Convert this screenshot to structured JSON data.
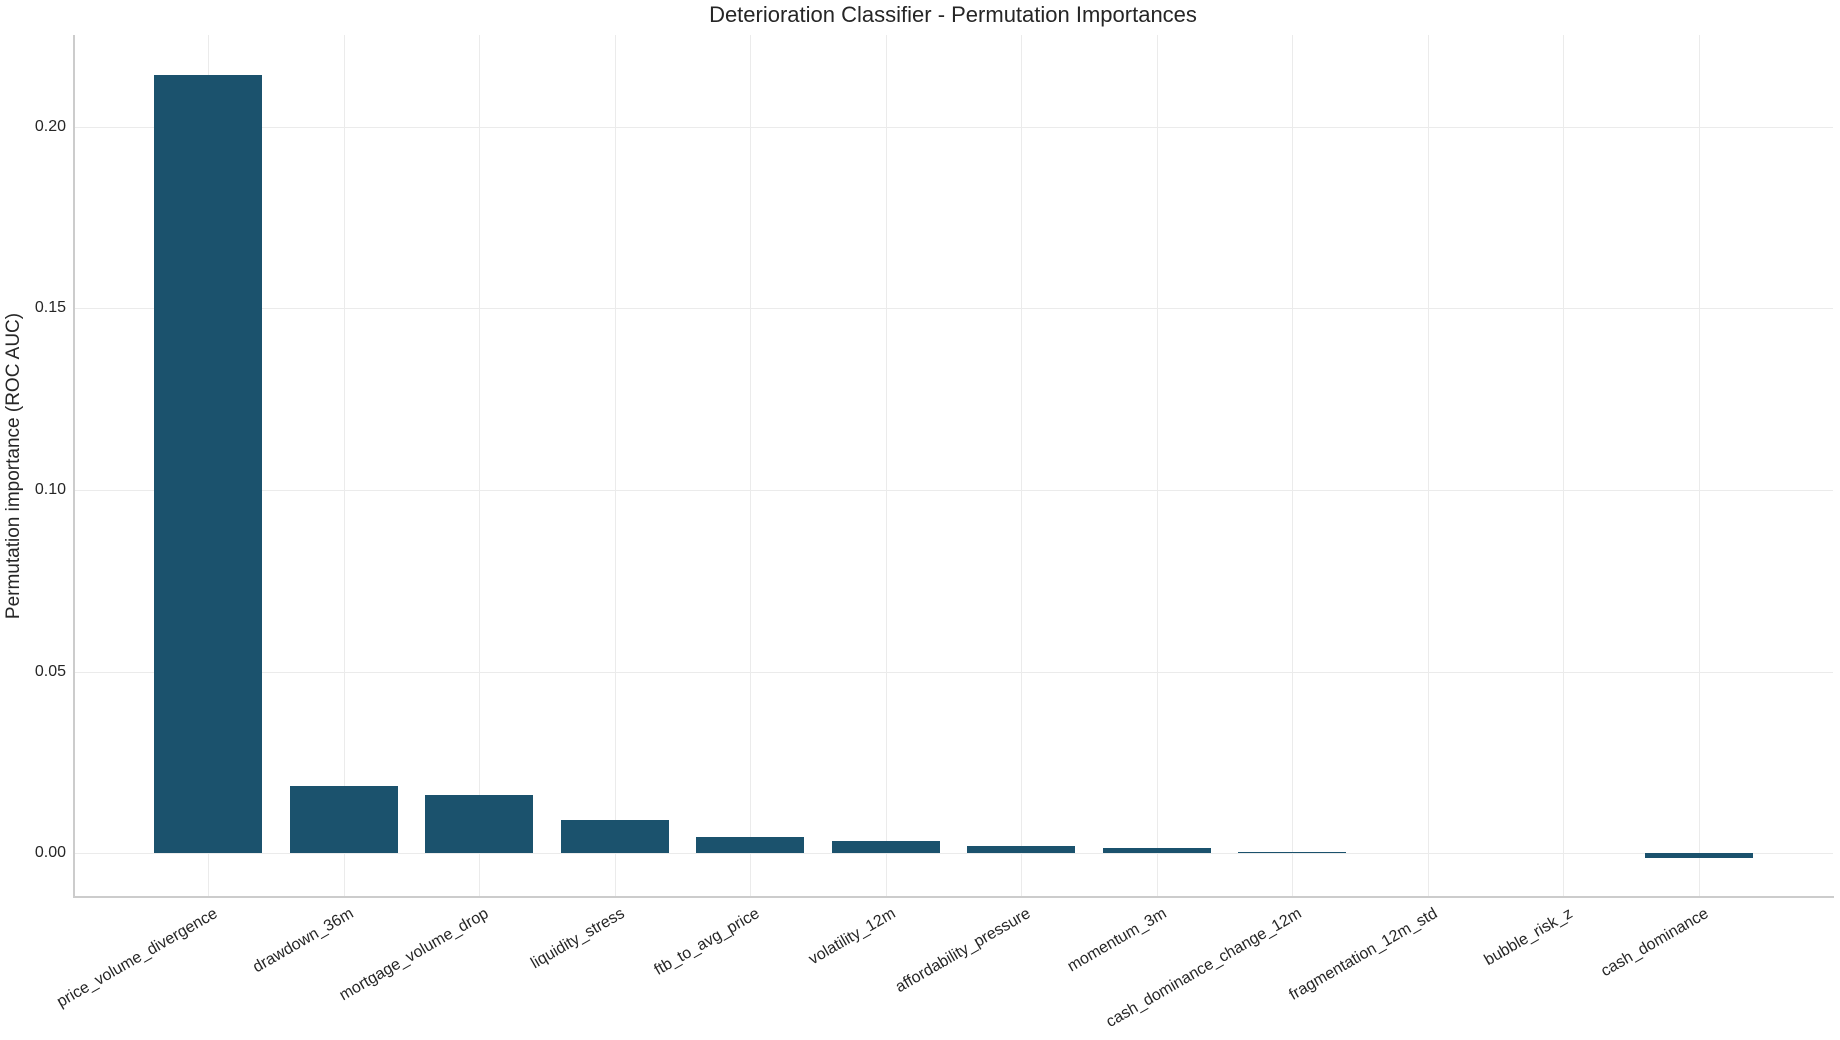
{
  "chart_data": {
    "type": "bar",
    "title": "Deterioration Classifier - Permutation Importances",
    "xlabel": "",
    "ylabel": "Permutation importance (ROC AUC)",
    "categories": [
      "price_volume_divergence",
      "drawdown_36m",
      "mortgage_volume_drop",
      "liquidity_stress",
      "ftb_to_avg_price",
      "volatility_12m",
      "affordability_pressure",
      "momentum_3m",
      "cash_dominance_change_12m",
      "fragmentation_12m_std",
      "bubble_risk_z",
      "cash_dominance"
    ],
    "values": [
      0.2143,
      0.0186,
      0.016,
      0.0092,
      0.0043,
      0.0034,
      0.0019,
      0.0015,
      0.0002,
      0.0,
      0.0,
      -0.0014
    ],
    "ylim": [
      -0.0121,
      0.2253
    ],
    "yticks": [
      "0.00",
      "0.05",
      "0.10",
      "0.15",
      "0.20"
    ],
    "ytick_values": [
      0.0,
      0.05,
      0.1,
      0.15,
      0.2
    ],
    "grid": true,
    "legend": null,
    "bar_color": "#1b526d",
    "xtick_rotation": -30
  }
}
